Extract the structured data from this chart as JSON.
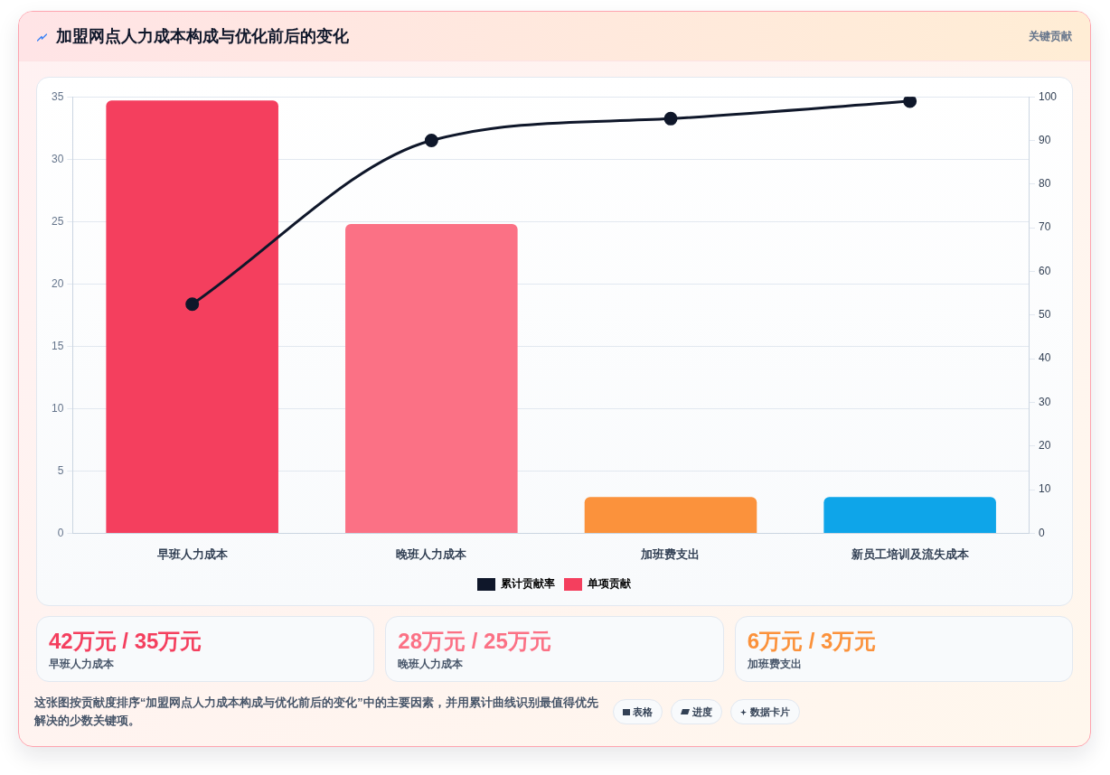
{
  "chart_data": [
    {
      "type": "bar",
      "title": "加盟网点人力成本构成与优化前后的变化",
      "annotations": [
        "关键贡献"
      ],
      "categories": [
        "早班人力成本",
        "晚班人力成本",
        "加班费支出",
        "新员工培训及流失成本"
      ],
      "series": [
        {
          "name": "累计贡献率",
          "type": "line",
          "axis": "y2",
          "color": "#0f172a",
          "values": [
            52.5,
            90,
            95,
            99
          ]
        },
        {
          "name": "单项贡献",
          "type": "bar",
          "color": "#f43f5e",
          "colors": [
            "#f43f5e",
            "#fb7185",
            "#fb923c",
            "#0ea5e9"
          ],
          "values": [
            34.7,
            24.8,
            2.9,
            2.9
          ]
        }
      ],
      "ylim": [
        0,
        35
      ],
      "yticks": [
        0,
        5,
        10,
        15,
        20,
        25,
        30,
        35
      ],
      "y2lim": [
        0,
        100
      ],
      "y2ticks": [
        0,
        10,
        20,
        30,
        40,
        50,
        60,
        70,
        80,
        90,
        100
      ],
      "grid": "y",
      "legend": "bottom",
      "marker": "circle"
    },
    {
      "type": "other",
      "categories": [
        "早班人力成本",
        "晚班人力成本",
        "加班费支出"
      ],
      "value_labels": [
        "42万元 / 35万元",
        "28万元 / 25万元",
        "6万元 / 3万元"
      ],
      "annotations": [
        "这张图按贡献度排序“加盟网点人力成本构成与优化前后的变化”中的主要因素，并用累计曲线识别最值得优先解决的少数关键项。",
        "表格",
        "进度",
        "数据卡片"
      ]
    }
  ]
}
